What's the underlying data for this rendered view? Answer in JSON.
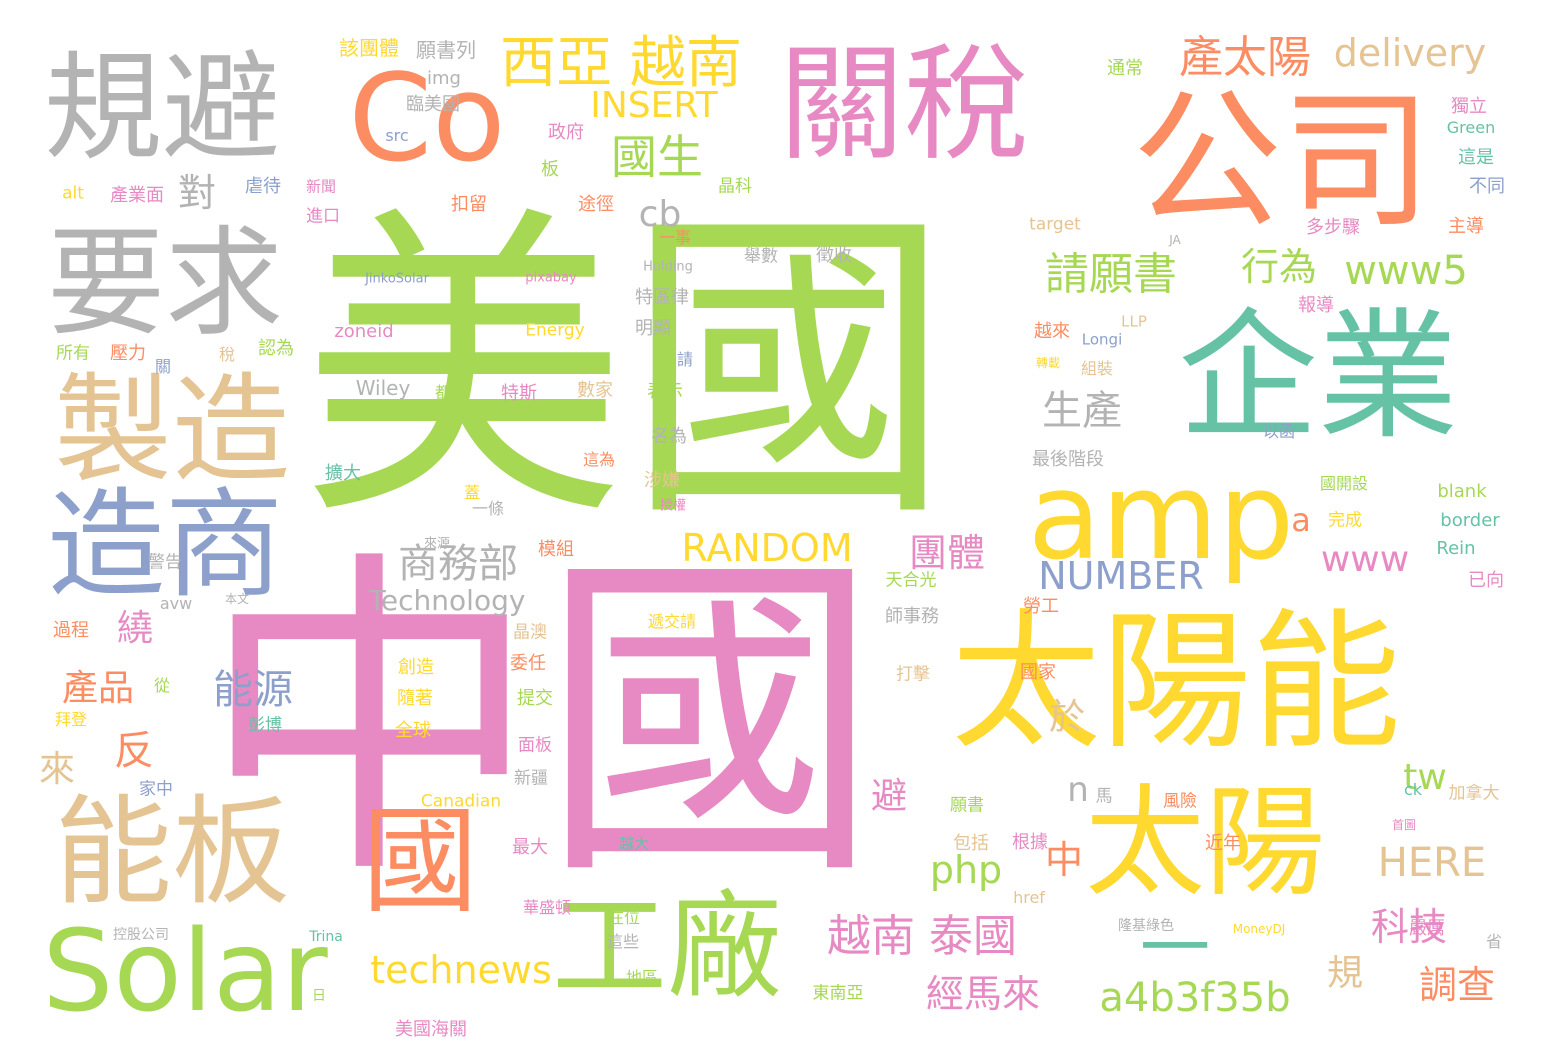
{
  "colors": {
    "green": "#a6d854",
    "pink": "#e78ac3",
    "orange": "#fc8d62",
    "yellow": "#ffd92f",
    "teal": "#66c2a5",
    "tan": "#e5c494",
    "gray": "#b3b3b3",
    "blue": "#8da0cb"
  },
  "words": [
    {
      "text": "美國",
      "color": "green"
    },
    {
      "text": "中國",
      "color": "pink"
    },
    {
      "text": "公司",
      "color": "orange"
    },
    {
      "text": "關稅",
      "color": "pink"
    },
    {
      "text": "企業",
      "color": "teal"
    },
    {
      "text": "太陽能",
      "color": "yellow"
    },
    {
      "text": "Co",
      "color": "orange"
    },
    {
      "text": "規避",
      "color": "gray"
    },
    {
      "text": "要求",
      "color": "gray"
    },
    {
      "text": "製造",
      "color": "tan"
    },
    {
      "text": "造商",
      "color": "blue"
    },
    {
      "text": "能板",
      "color": "tan"
    },
    {
      "text": "Solar",
      "color": "green"
    },
    {
      "text": "工廠",
      "color": "green"
    },
    {
      "text": "太陽",
      "color": "yellow"
    },
    {
      "text": "amp",
      "color": "yellow"
    },
    {
      "text": "國",
      "color": "orange"
    },
    {
      "text": "一",
      "color": "teal"
    },
    {
      "text": "西亞 越南",
      "color": "yellow"
    },
    {
      "text": "INSERT",
      "color": "yellow"
    },
    {
      "text": "國生",
      "color": "green"
    },
    {
      "text": "對",
      "color": "gray"
    },
    {
      "text": "產太陽",
      "color": "orange"
    },
    {
      "text": "delivery",
      "color": "tan"
    },
    {
      "text": "請願書",
      "color": "green"
    },
    {
      "text": "行為",
      "color": "green"
    },
    {
      "text": "www5",
      "color": "green"
    },
    {
      "text": "cb",
      "color": "gray"
    },
    {
      "text": "生產",
      "color": "gray"
    },
    {
      "text": "商務部",
      "color": "gray"
    },
    {
      "text": "RANDOM",
      "color": "yellow"
    },
    {
      "text": "團體",
      "color": "pink"
    },
    {
      "text": "a",
      "color": "orange"
    },
    {
      "text": "www",
      "color": "pink"
    },
    {
      "text": "NUMBER",
      "color": "blue"
    },
    {
      "text": "Technology",
      "color": "gray"
    },
    {
      "text": "繞",
      "color": "pink"
    },
    {
      "text": "產品",
      "color": "orange"
    },
    {
      "text": "能源",
      "color": "blue"
    },
    {
      "text": "反",
      "color": "orange"
    },
    {
      "text": "來",
      "color": "tan"
    },
    {
      "text": "於",
      "color": "tan"
    },
    {
      "text": "tw",
      "color": "green"
    },
    {
      "text": "n",
      "color": "gray"
    },
    {
      "text": "避",
      "color": "pink"
    },
    {
      "text": "php",
      "color": "green"
    },
    {
      "text": "中",
      "color": "orange"
    },
    {
      "text": "HERE",
      "color": "tan"
    },
    {
      "text": "越南 泰國",
      "color": "pink"
    },
    {
      "text": "technews",
      "color": "yellow"
    },
    {
      "text": "經馬來",
      "color": "pink"
    },
    {
      "text": "a4b3f35b",
      "color": "green"
    },
    {
      "text": "科技",
      "color": "pink"
    },
    {
      "text": "規",
      "color": "tan"
    },
    {
      "text": "調查",
      "color": "orange"
    },
    {
      "text": "該團體",
      "color": "yellow"
    },
    {
      "text": "願書列",
      "color": "gray"
    },
    {
      "text": "img",
      "color": "gray"
    },
    {
      "text": "臨美國",
      "color": "gray"
    },
    {
      "text": "src",
      "color": "blue"
    },
    {
      "text": "政府",
      "color": "pink"
    },
    {
      "text": "板",
      "color": "green"
    },
    {
      "text": "alt",
      "color": "yellow"
    },
    {
      "text": "產業面",
      "color": "pink"
    },
    {
      "text": "虐待",
      "color": "blue"
    },
    {
      "text": "新聞",
      "color": "pink"
    },
    {
      "text": "進口",
      "color": "pink"
    },
    {
      "text": "扣留",
      "color": "orange"
    },
    {
      "text": "途徑",
      "color": "orange"
    },
    {
      "text": "晶科",
      "color": "green"
    },
    {
      "text": "一事",
      "color": "orange"
    },
    {
      "text": "通常",
      "color": "green"
    },
    {
      "text": "獨立",
      "color": "pink"
    },
    {
      "text": "Green",
      "color": "teal"
    },
    {
      "text": "這是",
      "color": "teal"
    },
    {
      "text": "不同",
      "color": "blue"
    },
    {
      "text": "主導",
      "color": "orange"
    },
    {
      "text": "多步驟",
      "color": "pink"
    },
    {
      "text": "target",
      "color": "tan"
    },
    {
      "text": "JA",
      "color": "gray"
    },
    {
      "text": "JinkoSolar",
      "color": "blue"
    },
    {
      "text": "pixabay",
      "color": "pink"
    },
    {
      "text": "Holding",
      "color": "gray"
    },
    {
      "text": "舉數",
      "color": "gray"
    },
    {
      "text": "徵收",
      "color": "gray"
    },
    {
      "text": "特區律",
      "color": "gray"
    },
    {
      "text": "報導",
      "color": "pink"
    },
    {
      "text": "LLP",
      "color": "tan"
    },
    {
      "text": "zoneid",
      "color": "pink"
    },
    {
      "text": "Energy",
      "color": "yellow"
    },
    {
      "text": "明顯",
      "color": "gray"
    },
    {
      "text": "請",
      "color": "blue"
    },
    {
      "text": "越來",
      "color": "orange"
    },
    {
      "text": "Longi",
      "color": "blue"
    },
    {
      "text": "所有",
      "color": "green"
    },
    {
      "text": "壓力",
      "color": "orange"
    },
    {
      "text": "關",
      "color": "blue"
    },
    {
      "text": "稅",
      "color": "tan"
    },
    {
      "text": "認為",
      "color": "green"
    },
    {
      "text": "Wiley",
      "color": "gray"
    },
    {
      "text": "都",
      "color": "green"
    },
    {
      "text": "特斯",
      "color": "pink"
    },
    {
      "text": "數家",
      "color": "tan"
    },
    {
      "text": "表示",
      "color": "green"
    },
    {
      "text": "轉載",
      "color": "yellow"
    },
    {
      "text": "組裝",
      "color": "tan"
    },
    {
      "text": "以函",
      "color": "blue"
    },
    {
      "text": "名為",
      "color": "gray"
    },
    {
      "text": "擴大",
      "color": "teal"
    },
    {
      "text": "這為",
      "color": "orange"
    },
    {
      "text": "涉嫌",
      "color": "tan"
    },
    {
      "text": "最後階段",
      "color": "gray"
    },
    {
      "text": "蓋",
      "color": "yellow"
    },
    {
      "text": "一條",
      "color": "gray"
    },
    {
      "text": "授權",
      "color": "pink"
    },
    {
      "text": "國開設",
      "color": "green"
    },
    {
      "text": "blank",
      "color": "green"
    },
    {
      "text": "完成",
      "color": "yellow"
    },
    {
      "text": "border",
      "color": "teal"
    },
    {
      "text": "來源",
      "color": "gray"
    },
    {
      "text": "模組",
      "color": "orange"
    },
    {
      "text": "警告",
      "color": "gray"
    },
    {
      "text": "Rein",
      "color": "teal"
    },
    {
      "text": "天合光",
      "color": "green"
    },
    {
      "text": "已向",
      "color": "pink"
    },
    {
      "text": "avw",
      "color": "gray"
    },
    {
      "text": "本文",
      "color": "gray"
    },
    {
      "text": "過程",
      "color": "orange"
    },
    {
      "text": "晶澳",
      "color": "tan"
    },
    {
      "text": "遞交請",
      "color": "yellow"
    },
    {
      "text": "師事務",
      "color": "gray"
    },
    {
      "text": "勞工",
      "color": "orange"
    },
    {
      "text": "委任",
      "color": "orange"
    },
    {
      "text": "創造",
      "color": "yellow"
    },
    {
      "text": "從",
      "color": "green"
    },
    {
      "text": "提交",
      "color": "green"
    },
    {
      "text": "隨著",
      "color": "yellow"
    },
    {
      "text": "打擊",
      "color": "tan"
    },
    {
      "text": "國家",
      "color": "orange"
    },
    {
      "text": "拜登",
      "color": "yellow"
    },
    {
      "text": "彭博",
      "color": "teal"
    },
    {
      "text": "全球",
      "color": "yellow"
    },
    {
      "text": "面板",
      "color": "pink"
    },
    {
      "text": "新疆",
      "color": "gray"
    },
    {
      "text": "家中",
      "color": "blue"
    },
    {
      "text": "Canadian",
      "color": "yellow"
    },
    {
      "text": "馬",
      "color": "gray"
    },
    {
      "text": "ck",
      "color": "teal"
    },
    {
      "text": "加拿大",
      "color": "tan"
    },
    {
      "text": "願書",
      "color": "green"
    },
    {
      "text": "風險",
      "color": "orange"
    },
    {
      "text": "最大",
      "color": "pink"
    },
    {
      "text": "越大",
      "color": "teal"
    },
    {
      "text": "包括",
      "color": "tan"
    },
    {
      "text": "根據",
      "color": "pink"
    },
    {
      "text": "近年",
      "color": "orange"
    },
    {
      "text": "首圖",
      "color": "pink"
    },
    {
      "text": "href",
      "color": "tan"
    },
    {
      "text": "華盛頓",
      "color": "pink"
    },
    {
      "text": "在位",
      "color": "green"
    },
    {
      "text": "這些",
      "color": "gray"
    },
    {
      "text": "隆基綠色",
      "color": "gray"
    },
    {
      "text": "MoneyDJ",
      "color": "yellow"
    },
    {
      "text": "嚴厲",
      "color": "pink"
    },
    {
      "text": "控股公司",
      "color": "gray"
    },
    {
      "text": "Trina",
      "color": "teal"
    },
    {
      "text": "地區",
      "color": "green"
    },
    {
      "text": "東南亞",
      "color": "green"
    },
    {
      "text": "省",
      "color": "gray"
    },
    {
      "text": "日",
      "color": "green"
    },
    {
      "text": "美國海關",
      "color": "pink"
    }
  ]
}
